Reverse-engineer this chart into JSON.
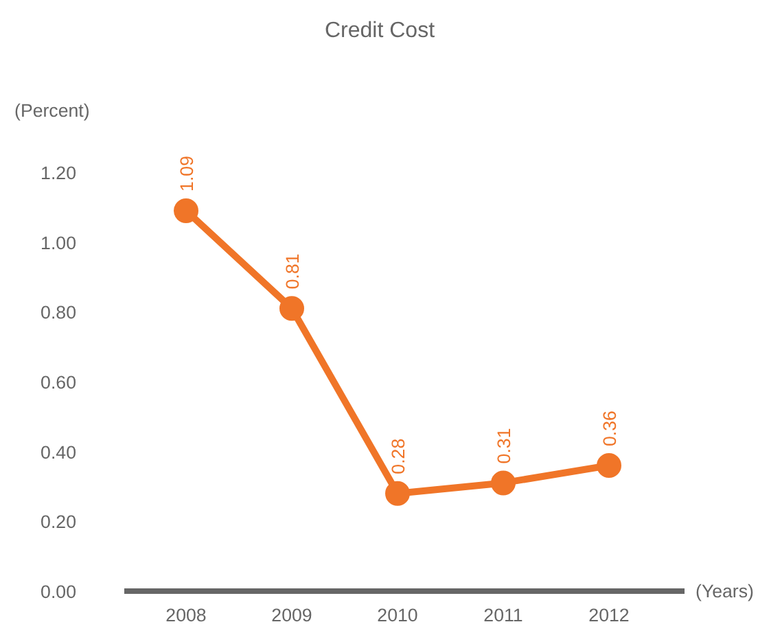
{
  "chart_data": {
    "type": "line",
    "title": "Credit Cost",
    "xlabel": "(Years)",
    "ylabel": "(Percent)",
    "categories": [
      "2008",
      "2009",
      "2010",
      "2011",
      "2012"
    ],
    "series": [
      {
        "color": "#f07528",
        "values": [
          1.09,
          0.81,
          0.28,
          0.31,
          0.36
        ]
      }
    ],
    "ylim": [
      0,
      1.2
    ],
    "yticks": [
      {
        "value": 0,
        "label": "0.00"
      },
      {
        "value": 0.2,
        "label": "0.20"
      },
      {
        "value": 0.4,
        "label": "0.40"
      },
      {
        "value": 0.6,
        "label": "0.60"
      },
      {
        "value": 0.8,
        "label": "0.80"
      },
      {
        "value": 1.0,
        "label": "1.00"
      },
      {
        "value": 1.2,
        "label": "1.20"
      }
    ],
    "data_labels": true,
    "marker": "circle"
  }
}
